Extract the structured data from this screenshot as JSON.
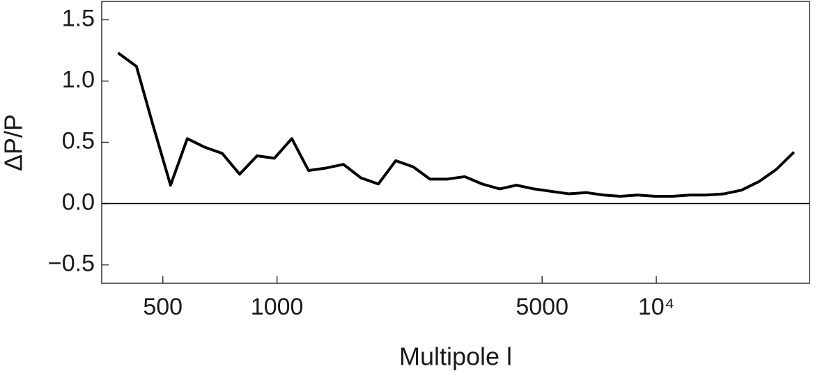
{
  "chart_data": {
    "type": "line",
    "xlabel": "Multipole l",
    "ylabel": "ΔP/P",
    "xscale": "log",
    "xlim": [
      345,
      25350
    ],
    "ylim": [
      -0.65,
      1.65
    ],
    "xticks": [
      500,
      1000,
      5000,
      {
        "value": 10000,
        "label": "10⁴"
      }
    ],
    "yticks": [
      {
        "value": -0.5,
        "label": "−0.5"
      },
      {
        "value": 0,
        "label": "0.0"
      },
      {
        "value": 0.5,
        "label": "0.5"
      },
      {
        "value": 1,
        "label": "1.0"
      },
      {
        "value": 1.5,
        "label": "1.5"
      }
    ],
    "x": [
      381,
      426,
      471,
      524,
      580,
      645,
      717,
      797,
      886,
      984,
      1094,
      1211,
      1346,
      1497,
      1664,
      1850,
      2056,
      2286,
      2530,
      2812,
      3126,
      3475,
      3864,
      4277,
      4754,
      5284,
      5874,
      6530,
      7260,
      8035,
      8933,
      9930,
      11040,
      12270,
      13580,
      15100,
      16780,
      18660,
      20740,
      23060
    ],
    "series": [
      {
        "color": "#000000",
        "values": [
          1.23,
          1.12,
          0.64,
          0.15,
          0.53,
          0.46,
          0.41,
          0.24,
          0.39,
          0.37,
          0.53,
          0.27,
          0.29,
          0.32,
          0.21,
          0.16,
          0.35,
          0.3,
          0.2,
          0.2,
          0.22,
          0.16,
          0.12,
          0.15,
          0.12,
          0.1,
          0.08,
          0.09,
          0.07,
          0.06,
          0.07,
          0.06,
          0.06,
          0.07,
          0.07,
          0.08,
          0.11,
          0.18,
          0.28,
          0.42
        ]
      }
    ]
  }
}
